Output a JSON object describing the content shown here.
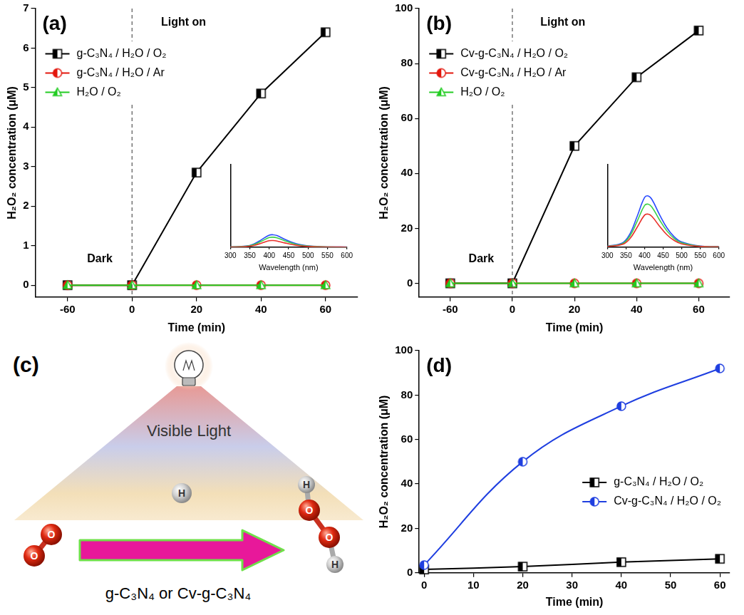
{
  "chart_data": [
    {
      "panel": "(a)",
      "type": "line",
      "categories": [
        "-60",
        "0",
        "20",
        "40",
        "60"
      ],
      "xlabel": "Time (min)",
      "ylabel": "H₂O₂ concentration (μM)",
      "ylim": [
        -0.3,
        7
      ],
      "yticks": [
        0,
        1,
        2,
        3,
        4,
        5,
        6,
        7
      ],
      "grid": false,
      "legend": "upper left",
      "reference_line": {
        "x": "0",
        "line_style": "dashed",
        "before": "Dark",
        "after": "Light on"
      },
      "series": [
        {
          "name": "g-C₃N₄ / H₂O / O₂",
          "color": "#000000",
          "marker": "square",
          "line_style": "solid",
          "values": [
            0,
            0,
            2.85,
            4.85,
            6.4
          ]
        },
        {
          "name": "g-C₃N₄ / H₂O / Ar",
          "color": "#e3170d",
          "marker": "circle",
          "line_style": "solid",
          "values": [
            0,
            0,
            0,
            0,
            0
          ]
        },
        {
          "name": "H₂O / O₂",
          "color": "#22cc22",
          "marker": "triangle",
          "line_style": "solid",
          "values": [
            0,
            0,
            0,
            0,
            0
          ]
        }
      ],
      "inset": {
        "type": "line",
        "xlabel": "Wavelength (nm)",
        "x": [
          300,
          340,
          360,
          380,
          400,
          410,
          420,
          440,
          460,
          480,
          500,
          550,
          600
        ],
        "xlim": [
          300,
          600
        ],
        "xticks": [
          300,
          350,
          400,
          450,
          500,
          550,
          600
        ],
        "ylim": [
          0,
          100
        ],
        "grid": false,
        "tick_labels": "x",
        "series": [
          {
            "color": "#2a4bff",
            "line_style": "smooth",
            "values": [
              0.3,
              1.2,
              3.8,
              9,
              14.6,
              15,
              14,
              9.6,
              5.7,
              3,
              1.5,
              0.3,
              0.2
            ]
          },
          {
            "color": "#3bd04a",
            "line_style": "smooth",
            "values": [
              0.2,
              1,
              3,
              7.2,
              11.6,
              12,
              11.2,
              7.7,
              4.6,
              2.4,
              1.2,
              0.2,
              0.1
            ]
          },
          {
            "color": "#e8302a",
            "line_style": "smooth",
            "values": [
              0.2,
              0.6,
              2,
              4.8,
              7.8,
              8,
              7.4,
              5.1,
              3,
              1.6,
              0.8,
              0.2,
              0.1
            ]
          }
        ]
      }
    },
    {
      "panel": "(b)",
      "type": "line",
      "categories": [
        "-60",
        "0",
        "20",
        "40",
        "60"
      ],
      "xlabel": "Time (min)",
      "ylabel": "H₂O₂ concentration (μM)",
      "ylim": [
        -5,
        100
      ],
      "yticks": [
        0,
        20,
        40,
        60,
        80,
        100
      ],
      "grid": false,
      "legend": "upper left",
      "reference_line": {
        "x": "0",
        "line_style": "dashed",
        "before": "Dark",
        "after": "Light on"
      },
      "series": [
        {
          "name": "Cv-g-C₃N₄ / H₂O / O₂",
          "color": "#000000",
          "marker": "square",
          "line_style": "solid",
          "values": [
            0,
            0,
            50,
            75,
            92
          ]
        },
        {
          "name": "Cv-g-C₃N₄ / H₂O / Ar",
          "color": "#e3170d",
          "marker": "circle",
          "line_style": "solid",
          "values": [
            0,
            0,
            0,
            0,
            0
          ]
        },
        {
          "name": "H₂O / O₂",
          "color": "#22cc22",
          "marker": "triangle",
          "line_style": "solid",
          "values": [
            0,
            0,
            0,
            0,
            0
          ]
        }
      ],
      "inset": {
        "type": "line",
        "xlabel": "Wavelength (nm)",
        "x": [
          300,
          340,
          360,
          380,
          400,
          410,
          420,
          440,
          460,
          480,
          500,
          550,
          600
        ],
        "xlim": [
          300,
          600
        ],
        "xticks": [
          300,
          350,
          400,
          450,
          500,
          550,
          600
        ],
        "ylim": [
          0,
          100
        ],
        "grid": false,
        "tick_labels": "x",
        "series": [
          {
            "color": "#2a4bff",
            "line_style": "smooth",
            "values": [
              1.2,
              5,
              15.5,
              37.2,
              60.1,
              62,
              57.7,
              39.7,
              23.6,
              12.4,
              6.2,
              1.2,
              0.6
            ]
          },
          {
            "color": "#3bd04a",
            "line_style": "smooth",
            "values": [
              1,
              4.2,
              13,
              31.2,
              50.4,
              52,
              48.4,
              33.3,
              19.8,
              10.4,
              5.2,
              1,
              0.5
            ]
          },
          {
            "color": "#e8302a",
            "line_style": "smooth",
            "values": [
              0.8,
              3.2,
              10,
              24,
              38.8,
              40,
              37.2,
              25.6,
              15.2,
              8,
              4,
              0.8,
              0.4
            ]
          }
        ]
      }
    },
    {
      "panel": "(d)",
      "type": "line",
      "x": [
        0,
        20,
        40,
        60
      ],
      "xlabel": "Time (min)",
      "ylabel": "H₂O₂ concentration (μM)",
      "xlim": [
        -1,
        62
      ],
      "xticks": [
        0,
        10,
        20,
        30,
        40,
        50,
        60
      ],
      "ylim": [
        0,
        100
      ],
      "yticks": [
        0,
        20,
        40,
        60,
        80,
        100
      ],
      "grid": false,
      "legend": "lower right",
      "series": [
        {
          "name": "g-C₃N₄ / H₂O / O₂",
          "color": "#000000",
          "marker": "square",
          "line_style": "smooth",
          "values": [
            1.5,
            2.8,
            4.8,
            6.3
          ]
        },
        {
          "name": "Cv-g-C₃N₄ / H₂O / O₂",
          "color": "#1f3fe0",
          "marker": "circle",
          "line_style": "smooth",
          "values": [
            3.5,
            50,
            75,
            92
          ]
        }
      ]
    }
  ],
  "diagram": {
    "panel": "(c)",
    "light_label": "Visible Light",
    "hydrogen_atom": "H",
    "reactant_atoms": [
      "O",
      "O"
    ],
    "product_atoms": [
      "H",
      "O",
      "O",
      "H"
    ],
    "catalyst_label": "g-C₃N₄ or Cv-g-C₃N₄"
  }
}
